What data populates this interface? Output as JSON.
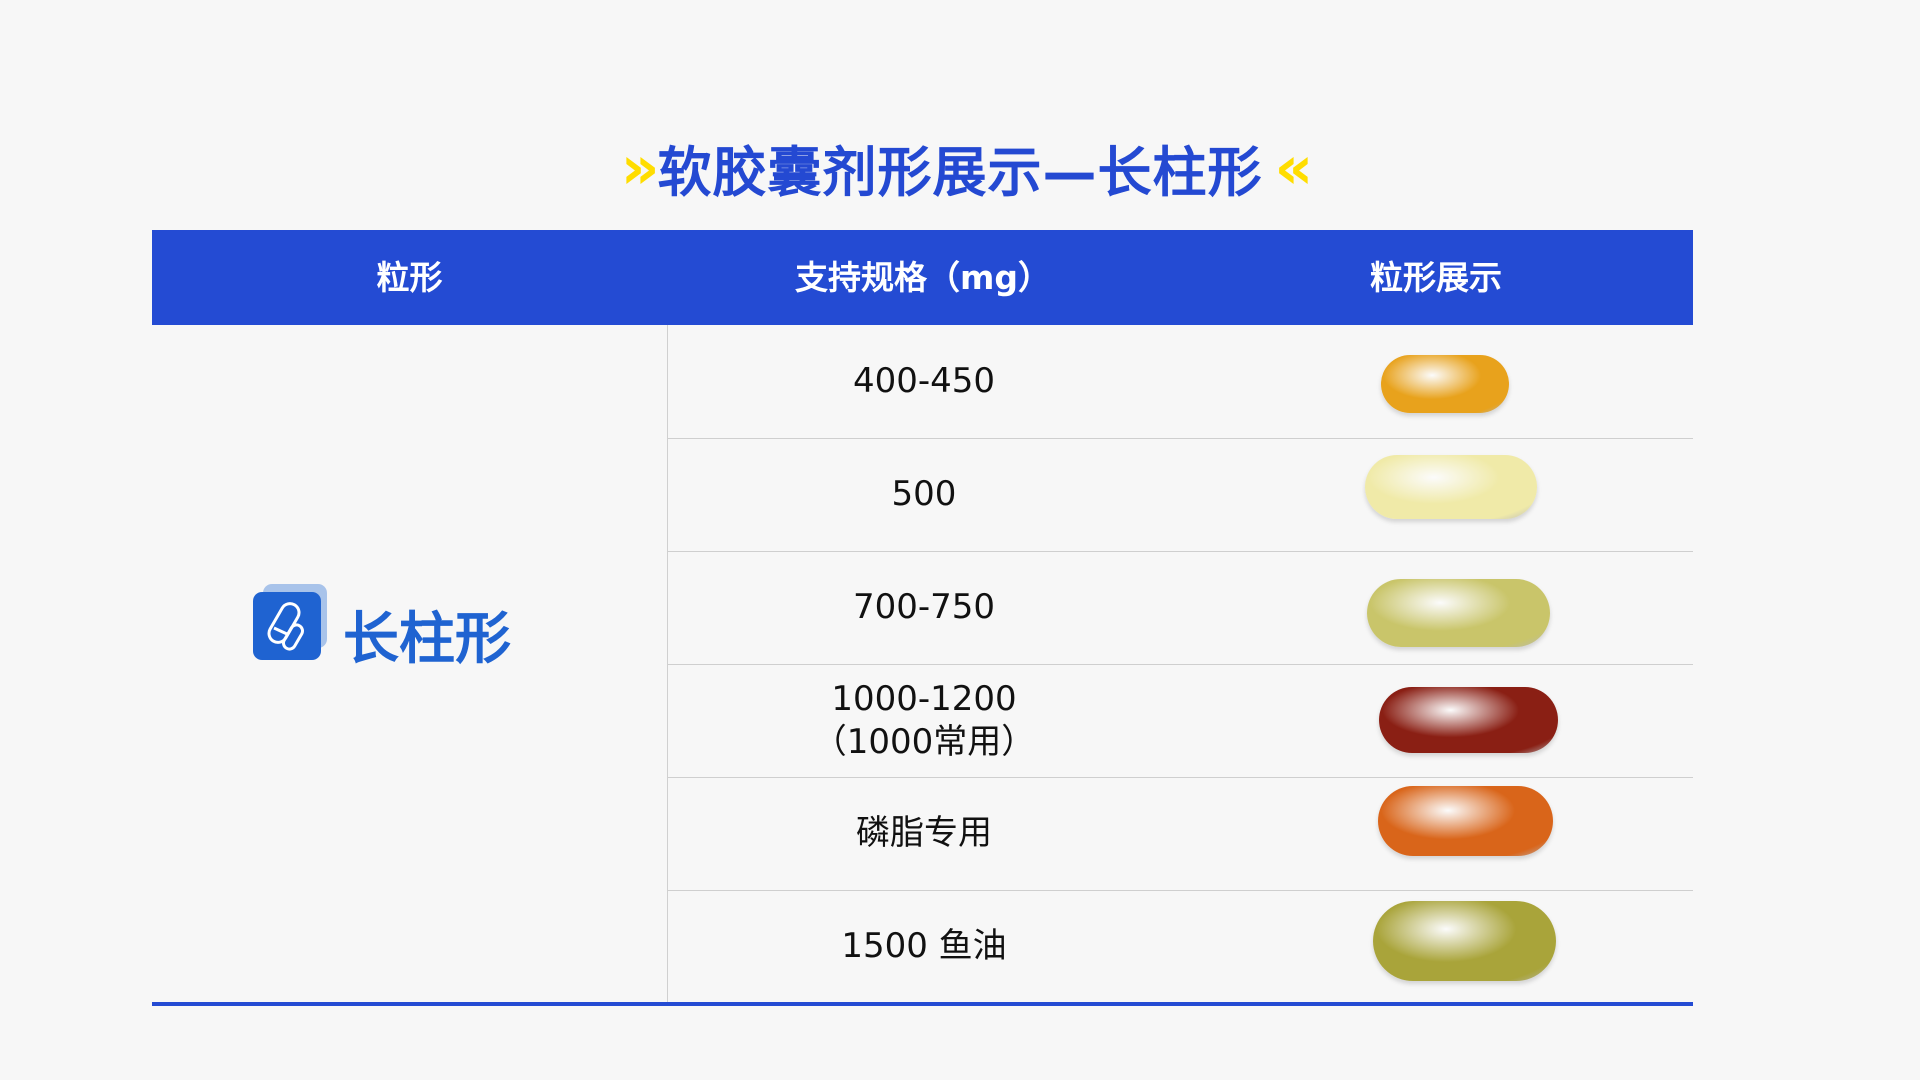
{
  "title": {
    "text": "软胶囊剂形展示—长柱形",
    "left_decor": "»",
    "right_decor": "«"
  },
  "header": {
    "col1": "粒形",
    "col2": "支持规格（mg）",
    "col3": "粒形展示"
  },
  "shape": {
    "label": "长柱形",
    "icon": "capsule-pills-icon"
  },
  "rows": [
    {
      "spec": "400-450",
      "color": "#e8a21c"
    },
    {
      "spec": "500",
      "color": "#f0eaa8"
    },
    {
      "spec": "700-750",
      "color": "#c9c56a"
    },
    {
      "spec": "1000-1200\n（1000常用）",
      "color": "#8a1f14"
    },
    {
      "spec": "磷脂专用",
      "color": "#d9651a"
    },
    {
      "spec": "1500 鱼油",
      "color": "#a9a43a"
    }
  ],
  "colors": {
    "accent": "#244bd3",
    "highlight": "#ffdd00",
    "shape_text": "#1f63d1"
  }
}
